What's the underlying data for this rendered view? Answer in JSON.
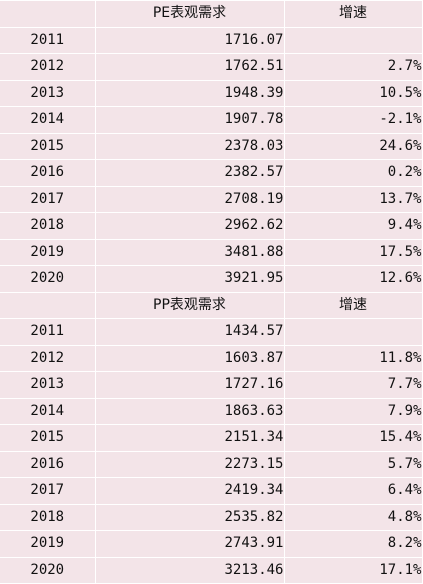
{
  "sections": [
    {
      "header": {
        "year": "",
        "value": "PE表观需求",
        "growth": "增速"
      },
      "rows": [
        {
          "year": "2011",
          "value": "1716.07",
          "growth": ""
        },
        {
          "year": "2012",
          "value": "1762.51",
          "growth": "2.7%"
        },
        {
          "year": "2013",
          "value": "1948.39",
          "growth": "10.5%"
        },
        {
          "year": "2014",
          "value": "1907.78",
          "growth": "-2.1%"
        },
        {
          "year": "2015",
          "value": "2378.03",
          "growth": "24.6%"
        },
        {
          "year": "2016",
          "value": "2382.57",
          "growth": "0.2%"
        },
        {
          "year": "2017",
          "value": "2708.19",
          "growth": "13.7%"
        },
        {
          "year": "2018",
          "value": "2962.62",
          "growth": "9.4%"
        },
        {
          "year": "2019",
          "value": "3481.88",
          "growth": "17.5%"
        },
        {
          "year": "2020",
          "value": "3921.95",
          "growth": "12.6%"
        }
      ]
    },
    {
      "header": {
        "year": "",
        "value": "PP表观需求",
        "growth": "增速"
      },
      "rows": [
        {
          "year": "2011",
          "value": "1434.57",
          "growth": ""
        },
        {
          "year": "2012",
          "value": "1603.87",
          "growth": "11.8%"
        },
        {
          "year": "2013",
          "value": "1727.16",
          "growth": "7.7%"
        },
        {
          "year": "2014",
          "value": "1863.63",
          "growth": "7.9%"
        },
        {
          "year": "2015",
          "value": "2151.34",
          "growth": "15.4%"
        },
        {
          "year": "2016",
          "value": "2273.15",
          "growth": "5.7%"
        },
        {
          "year": "2017",
          "value": "2419.34",
          "growth": "6.4%"
        },
        {
          "year": "2018",
          "value": "2535.82",
          "growth": "4.8%"
        },
        {
          "year": "2019",
          "value": "2743.91",
          "growth": "8.2%"
        },
        {
          "year": "2020",
          "value": "3213.46",
          "growth": "17.1%"
        }
      ]
    }
  ],
  "colors": {
    "cell_background": "#f3e4e8",
    "grid_line": "#ffffff",
    "text": "#111111"
  }
}
